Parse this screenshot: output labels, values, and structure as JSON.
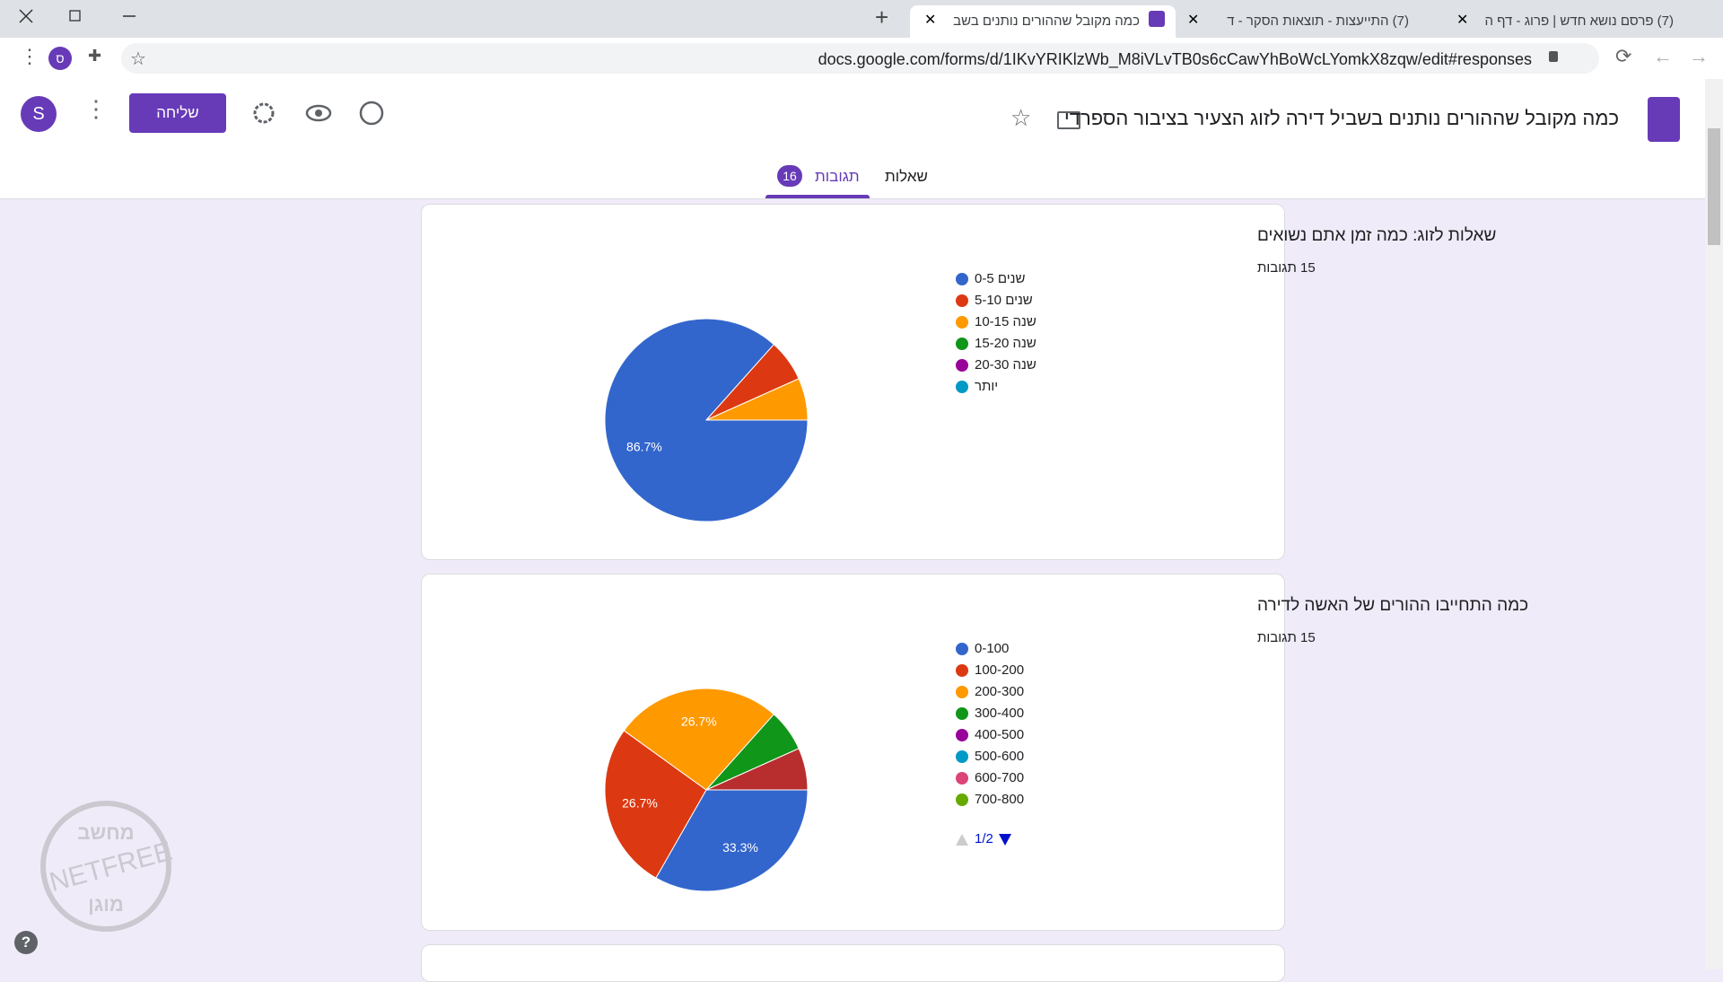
{
  "browser": {
    "tabs": [
      "(7) פרסם נושא חדש | פרוג - דף ה",
      "(7) התייעצות - תוצאות הסקר - ד",
      "כמה מקובל שההורים נותנים בשב"
    ],
    "url": "docs.google.com/forms/d/1IKvYRIKlzWb_M8iVLvTB0s6cCawYhBoWcLYomkX8zqw/edit#responses",
    "profile": "ס"
  },
  "form": {
    "title": "כמה מקובל שההורים נותנים בשביל דירה לזוג הצעיר בציבור הספרדי",
    "send": "שליחה",
    "avatar": "S",
    "tab_questions": "שאלות",
    "tab_responses": "תגובות",
    "responses_badge": "16",
    "help": "?"
  },
  "watermark": {
    "top": "מחשב",
    "middle": "NETFREE",
    "bottom": "מוגן"
  },
  "chart_data": [
    {
      "type": "pie",
      "title": "שאלות לזוג: כמה זמן אתם נשואים",
      "subtitle": "15 תגובות",
      "categories": [
        "0-5 שנים",
        "5-10 שנים",
        "10-15 שנה",
        "15-20 שנה",
        "20-30 שנה",
        "יותר"
      ],
      "values": [
        86.7,
        6.7,
        6.7,
        0,
        0,
        0
      ],
      "value_labels": [
        "86.7%",
        null,
        null,
        null,
        null,
        null
      ],
      "colors": [
        "#3366cc",
        "#dc3912",
        "#ff9900",
        "#109618",
        "#990099",
        "#0099c6"
      ]
    },
    {
      "type": "pie",
      "title": "כמה התחייבו ההורים של האשה לדירה",
      "subtitle": "15 תגובות",
      "categories": [
        "0-100",
        "100-200",
        "200-300",
        "300-400",
        "400-500",
        "500-600",
        "600-700",
        "700-800",
        null
      ],
      "values": [
        33.3,
        26.7,
        26.7,
        6.7,
        0,
        0,
        0,
        0,
        6.7
      ],
      "value_labels": [
        "33.3%",
        "26.7%",
        "26.7%",
        null,
        null,
        null,
        null,
        null,
        null
      ],
      "colors": [
        "#3366cc",
        "#dc3912",
        "#ff9900",
        "#109618",
        "#990099",
        "#0099c6",
        "#dd4477",
        "#66aa00",
        "#b82e2e"
      ],
      "legend_page": "1/2"
    }
  ]
}
